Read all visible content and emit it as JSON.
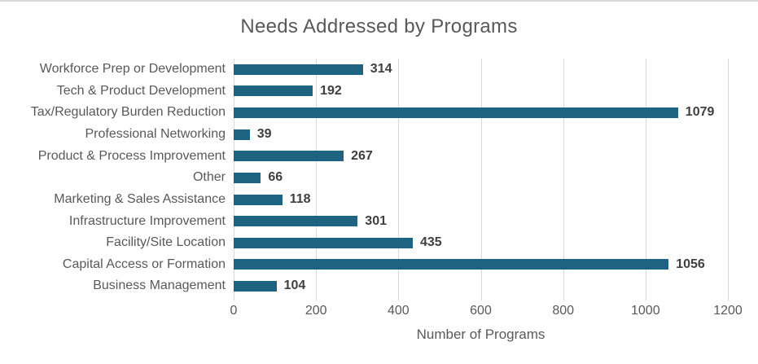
{
  "chart_data": {
    "type": "bar",
    "orientation": "horizontal",
    "title": "Needs Addressed by Programs",
    "xlabel": "Number of Programs",
    "ylabel": "",
    "categories": [
      "Workforce Prep or Development",
      "Tech & Product Development",
      "Tax/Regulatory Burden Reduction",
      "Professional Networking",
      "Product & Process Improvement",
      "Other",
      "Marketing & Sales Assistance",
      "Infrastructure Improvement",
      "Facility/Site Location",
      "Capital Access or Formation",
      "Business Management"
    ],
    "values": [
      314,
      192,
      1079,
      39,
      267,
      66,
      118,
      301,
      435,
      1056,
      104
    ],
    "xlim": [
      0,
      1200
    ],
    "xticks": [
      0,
      200,
      400,
      600,
      800,
      1000,
      1200
    ],
    "grid": "vertical",
    "legend": "none",
    "data_labels": true,
    "colors": {
      "bar": "#1f6383",
      "gridline": "#d9d9d9",
      "axis_text": "#595959",
      "value_label": "#3f3f3f",
      "background": "#ffffff"
    }
  }
}
